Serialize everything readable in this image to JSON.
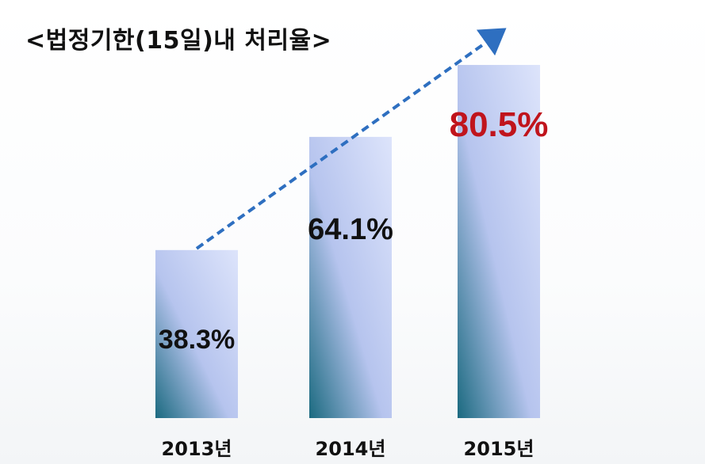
{
  "chart_data": {
    "type": "bar",
    "title": "<법정기한(15일)내 처리율>",
    "categories": [
      "2013년",
      "2014년",
      "2015년"
    ],
    "values": [
      38.3,
      64.1,
      80.5
    ],
    "value_labels": [
      "38.3%",
      "64.1%",
      "80.5%"
    ],
    "ylim": [
      0,
      100
    ],
    "grid": false,
    "legend": "none",
    "trend_arrow": true
  },
  "colors": {
    "bar_top": "#dde4fb",
    "bar_mid": "#b6c4ee",
    "bar_bottom": "#1b6a80",
    "arrow": "#2e6fc0",
    "label_default": "#111111",
    "label_highlight": "#c0141c"
  }
}
